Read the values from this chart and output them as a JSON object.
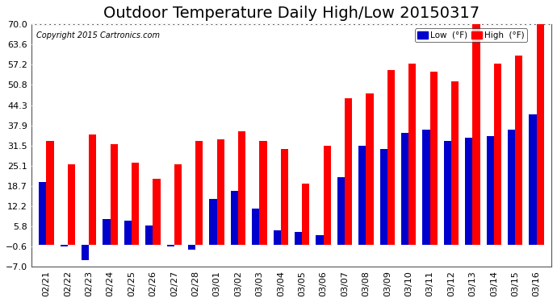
{
  "title": "Outdoor Temperature Daily High/Low 20150317",
  "copyright": "Copyright 2015 Cartronics.com",
  "legend_low": "Low  (°F)",
  "legend_high": "High  (°F)",
  "dates": [
    "02/21",
    "02/22",
    "02/23",
    "02/24",
    "02/25",
    "02/26",
    "02/27",
    "02/28",
    "03/01",
    "03/02",
    "03/03",
    "03/04",
    "03/05",
    "03/06",
    "03/07",
    "03/08",
    "03/09",
    "03/10",
    "03/11",
    "03/12",
    "03/13",
    "03/14",
    "03/15",
    "03/16"
  ],
  "highs": [
    33.0,
    25.5,
    35.0,
    32.0,
    26.0,
    21.0,
    25.5,
    33.0,
    33.5,
    36.0,
    33.0,
    30.5,
    19.5,
    31.5,
    46.5,
    48.0,
    55.5,
    57.5,
    55.0,
    52.0,
    70.0,
    57.5,
    60.0,
    70.5
  ],
  "lows": [
    20.0,
    -0.5,
    -5.0,
    8.0,
    7.5,
    6.0,
    -0.5,
    -1.5,
    14.5,
    17.0,
    11.5,
    4.5,
    4.0,
    3.0,
    21.5,
    31.5,
    30.5,
    35.5,
    36.5,
    33.0,
    34.0,
    34.5,
    36.5,
    41.5
  ],
  "high_color": "#ff0000",
  "low_color": "#0000cc",
  "bg_color": "#ffffff",
  "plot_bg_color": "#ffffff",
  "grid_color": "#aaaaaa",
  "ylim": [
    -7.0,
    70.0
  ],
  "yticks": [
    -7.0,
    -0.6,
    5.8,
    12.2,
    18.7,
    25.1,
    31.5,
    37.9,
    44.3,
    50.8,
    57.2,
    63.6,
    70.0
  ],
  "title_fontsize": 14,
  "tick_fontsize": 8,
  "bar_width": 0.35
}
